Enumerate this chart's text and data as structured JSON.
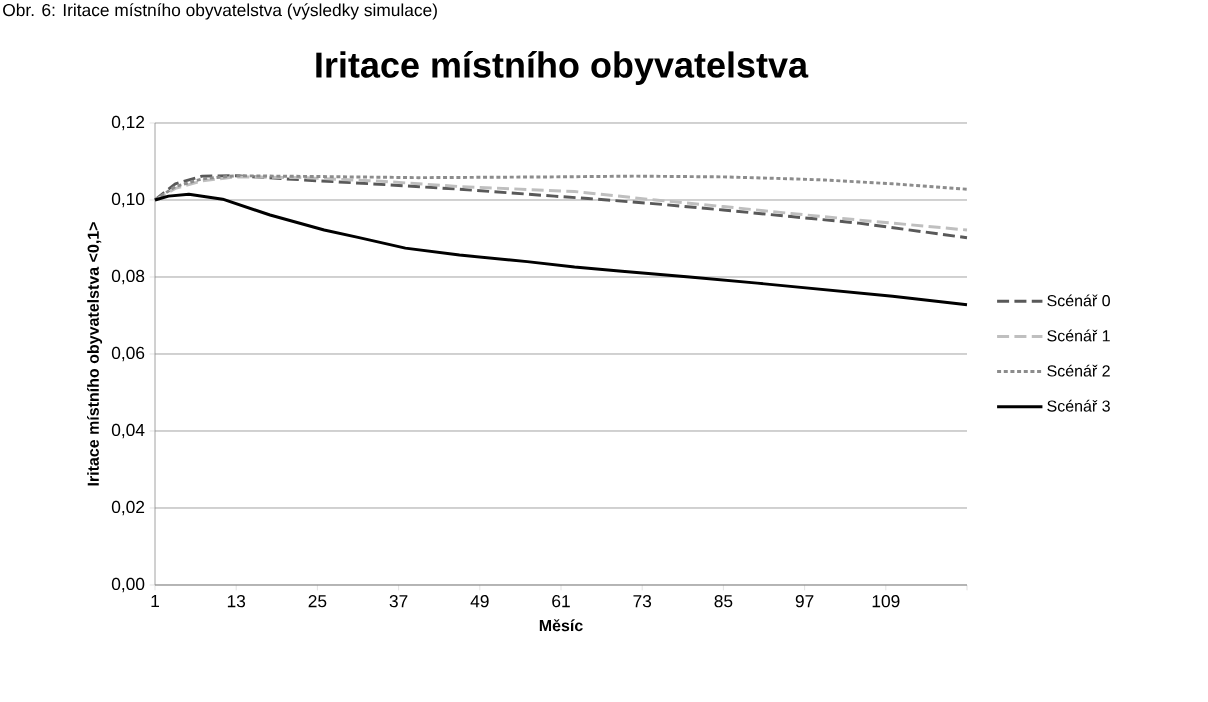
{
  "chart_data": {
    "type": "line",
    "title": "Iritace místního obyvatelstva",
    "xlabel": "Měsíc",
    "ylabel": "Iritace místního obyvatelstva <0,1>",
    "annotations": [
      "Obr. 6: Iritace místního obyvatelstva (výsledky simulace)"
    ],
    "xlim": [
      1,
      121
    ],
    "xticks": [
      1,
      13,
      25,
      37,
      49,
      61,
      73,
      85,
      97,
      109,
      {
        "value": 121,
        "label": null
      }
    ],
    "ylim": [
      0,
      0.12
    ],
    "yticks": [
      {
        "value": 0,
        "label": "0,00"
      },
      {
        "value": 0.02,
        "label": "0,02"
      },
      {
        "value": 0.04,
        "label": "0,04"
      },
      {
        "value": 0.06,
        "label": "0,06"
      },
      {
        "value": 0.08,
        "label": "0,08"
      },
      {
        "value": 0.1,
        "label": "0,10"
      },
      {
        "value": 0.12,
        "label": "0,12"
      }
    ],
    "grid": "y",
    "legend": "right",
    "marker": "none",
    "series": [
      {
        "name": "Scénář 0",
        "color": "#595959",
        "line_style": "dashed",
        "x": [
          1,
          4,
          8,
          13,
          23,
          35,
          46,
          60,
          65,
          75,
          85,
          95,
          105,
          121
        ],
        "values": [
          0.1,
          0.1042,
          0.1062,
          0.1063,
          0.1052,
          0.104,
          0.1028,
          0.101,
          0.1004,
          0.099,
          0.0974,
          0.0957,
          0.094,
          0.0902
        ]
      },
      {
        "name": "Scénář 1",
        "color": "#bfbfbf",
        "line_style": "dashed",
        "x": [
          1,
          4,
          8,
          13,
          23,
          35,
          46,
          63,
          75,
          85,
          95,
          105,
          121
        ],
        "values": [
          0.1,
          0.103,
          0.105,
          0.106,
          0.1058,
          0.1048,
          0.1035,
          0.1022,
          0.1,
          0.0983,
          0.0965,
          0.0948,
          0.0922
        ]
      },
      {
        "name": "Scénář 2",
        "color": "#8c8c8c",
        "line_style": "dotted",
        "x": [
          1,
          4,
          8,
          13,
          25,
          40,
          60,
          72,
          85,
          95,
          100,
          110,
          121
        ],
        "values": [
          0.1,
          0.1035,
          0.1055,
          0.1063,
          0.1061,
          0.1058,
          0.106,
          0.1062,
          0.106,
          0.1055,
          0.1052,
          0.1042,
          0.1028
        ]
      },
      {
        "name": "Scénář 3",
        "color": "#000000",
        "line_style": "solid",
        "x": [
          1,
          3,
          6,
          11,
          18,
          26,
          31,
          38,
          46,
          56,
          63,
          70,
          80,
          90,
          100,
          110,
          121
        ],
        "values": [
          0.1,
          0.101,
          0.1015,
          0.1002,
          0.0961,
          0.0922,
          0.0903,
          0.0875,
          0.0857,
          0.084,
          0.0826,
          0.0815,
          0.08,
          0.0784,
          0.0767,
          0.075,
          0.0728
        ]
      }
    ]
  }
}
